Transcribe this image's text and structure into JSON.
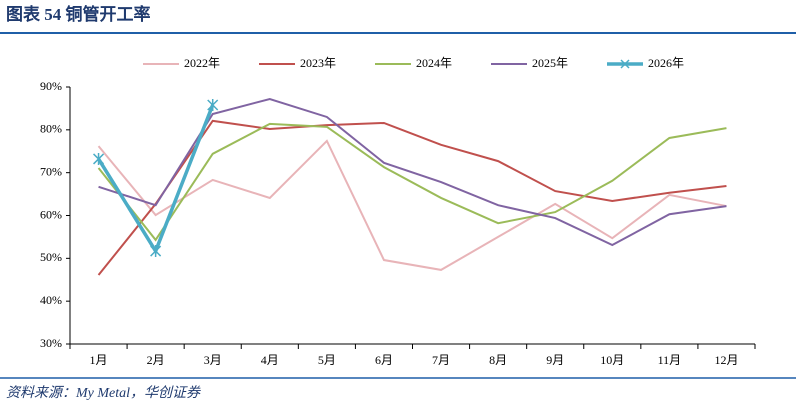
{
  "chart_data": {
    "type": "line",
    "title": "图表 54  铜管开工率",
    "source": "资料来源：My Metal，华创证券",
    "categories": [
      "1月",
      "2月",
      "3月",
      "4月",
      "5月",
      "6月",
      "7月",
      "8月",
      "9月",
      "10月",
      "11月",
      "12月"
    ],
    "series": [
      {
        "name": "2022年",
        "color": "#e8b4b8",
        "values": [
          76.2,
          60.1,
          68.3,
          64.1,
          77.4,
          49.6,
          47.3,
          55.0,
          62.7,
          54.7,
          64.8,
          62.2
        ]
      },
      {
        "name": "2023年",
        "color": "#c0504d",
        "values": [
          46.1,
          62.7,
          82.1,
          80.2,
          81.1,
          81.6,
          76.5,
          72.7,
          65.7,
          63.4,
          65.3,
          66.9
        ]
      },
      {
        "name": "2024年",
        "color": "#9bbb59",
        "values": [
          71.1,
          54.3,
          74.4,
          81.4,
          80.7,
          71.3,
          64.1,
          58.2,
          60.8,
          68.1,
          78.1,
          80.4
        ]
      },
      {
        "name": "2025年",
        "color": "#8064a2",
        "values": [
          66.7,
          62.4,
          83.7,
          87.2,
          83.0,
          72.3,
          67.8,
          62.4,
          59.4,
          53.1,
          60.3,
          62.2
        ]
      },
      {
        "name": "2026年",
        "color": "#4bacc6",
        "values": [
          73.2,
          51.7,
          85.8,
          null,
          null,
          null,
          null,
          null,
          null,
          null,
          null,
          null
        ]
      }
    ],
    "ylim": [
      30,
      90
    ],
    "yticks": [
      {
        "value": 30,
        "label": "30%"
      },
      {
        "value": 40,
        "label": "40%"
      },
      {
        "value": 50,
        "label": "50%"
      },
      {
        "value": 60,
        "label": "60%"
      },
      {
        "value": 70,
        "label": "70%"
      },
      {
        "value": 80,
        "label": "80%"
      },
      {
        "value": 90,
        "label": "90%"
      }
    ],
    "grid": false
  }
}
